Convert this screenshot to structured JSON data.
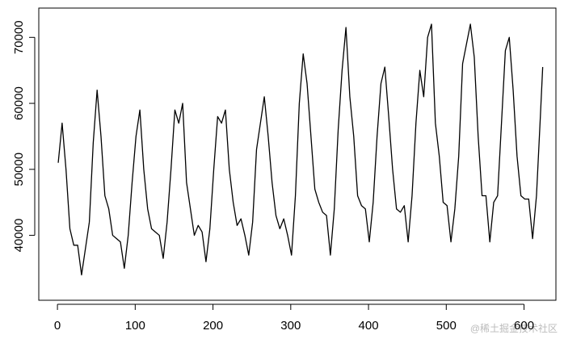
{
  "chart_data": {
    "type": "line",
    "color": "#000000",
    "x": [
      1,
      6,
      11,
      16,
      21,
      26,
      31,
      36,
      41,
      46,
      51,
      56,
      61,
      66,
      71,
      76,
      81,
      86,
      91,
      96,
      101,
      106,
      111,
      116,
      121,
      126,
      131,
      136,
      141,
      146,
      151,
      156,
      161,
      166,
      171,
      176,
      181,
      186,
      191,
      196,
      201,
      206,
      211,
      216,
      221,
      226,
      231,
      236,
      241,
      246,
      251,
      256,
      261,
      266,
      271,
      276,
      281,
      286,
      291,
      296,
      301,
      306,
      311,
      316,
      321,
      326,
      331,
      336,
      341,
      346,
      351,
      356,
      361,
      366,
      371,
      376,
      381,
      386,
      391,
      396,
      401,
      406,
      411,
      416,
      421,
      426,
      431,
      436,
      441,
      446,
      451,
      456,
      461,
      466,
      471,
      476,
      481,
      486,
      491,
      496,
      501,
      506,
      511,
      516,
      521,
      526,
      531,
      536,
      541,
      546,
      551,
      556,
      561,
      566,
      571,
      576,
      581,
      586,
      591,
      596,
      601,
      606,
      611,
      616,
      621,
      624
    ],
    "values": [
      51000,
      57000,
      50000,
      41000,
      38500,
      38500,
      34000,
      38000,
      42000,
      54000,
      62000,
      55000,
      46000,
      44000,
      40000,
      39500,
      39000,
      35000,
      40000,
      48000,
      55000,
      59000,
      50000,
      44000,
      41000,
      40500,
      40000,
      36500,
      42000,
      50000,
      59000,
      57000,
      60000,
      48000,
      44000,
      40000,
      41500,
      40500,
      36000,
      41000,
      50000,
      58000,
      57000,
      59000,
      50000,
      45000,
      41500,
      42500,
      40000,
      37000,
      42000,
      53000,
      57000,
      61000,
      55000,
      48000,
      43000,
      41000,
      42500,
      40000,
      37000,
      46000,
      60000,
      67500,
      63000,
      55000,
      47000,
      45000,
      43500,
      43000,
      37000,
      44000,
      56000,
      65000,
      71500,
      61000,
      55000,
      46000,
      44500,
      44000,
      39000,
      45000,
      55000,
      63000,
      65500,
      58000,
      50000,
      44000,
      43500,
      44500,
      39000,
      46000,
      57000,
      65000,
      61000,
      70000,
      72000,
      57000,
      52000,
      45000,
      44500,
      39000,
      44000,
      52000,
      66000,
      69000,
      72000,
      67000,
      55000,
      46000,
      46000,
      39000,
      45000,
      46000,
      57000,
      68000,
      70000,
      62000,
      52000,
      46000,
      45500,
      45500,
      39500,
      46000,
      58000,
      65500
    ],
    "xlim": [
      -24,
      641
    ],
    "ylim": [
      30160,
      74440
    ],
    "xticks": [
      0,
      100,
      200,
      300,
      400,
      500,
      600
    ],
    "yticks": [
      40000,
      50000,
      60000,
      70000
    ],
    "watermark": "@稀土掘金技术社区"
  }
}
